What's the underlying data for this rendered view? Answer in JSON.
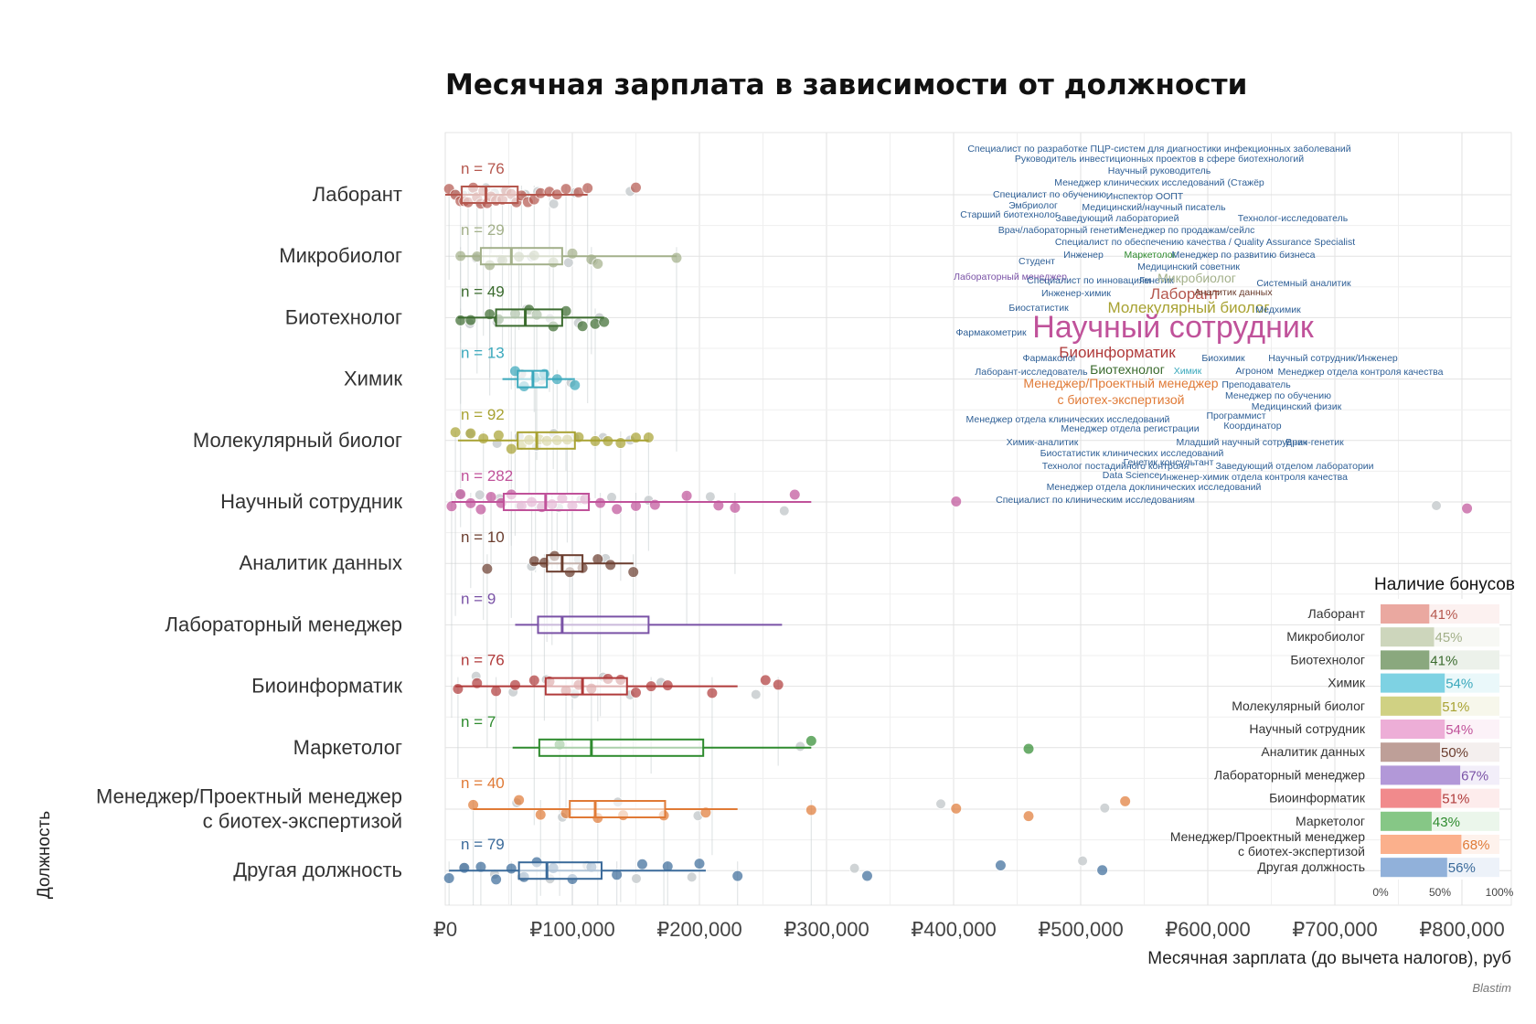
{
  "chart_data": {
    "type": "boxplot",
    "title": "Месячная зарплата в зависимости от должности",
    "xlabel": "Месячная зарплата (до вычета налогов), руб",
    "ylabel": "Должность",
    "credit": "Blastim",
    "xlim": [
      0,
      840000
    ],
    "xticks": [
      0,
      100000,
      200000,
      300000,
      400000,
      500000,
      600000,
      700000,
      800000
    ],
    "xtick_labels": [
      "₽0",
      "₽100,000",
      "₽200,000",
      "₽300,000",
      "₽400,000",
      "₽500,000",
      "₽600,000",
      "₽700,000",
      "₽800,000"
    ],
    "categories": [
      {
        "label": "Лаборант",
        "n_label": "n = 76",
        "color": "#b5574e",
        "whisker": [
          0,
          112000
        ],
        "q1": 13000,
        "median": 32000,
        "q3": 57000,
        "points": [
          3000,
          8000,
          12000,
          15000,
          18000,
          22000,
          25000,
          28000,
          30000,
          33000,
          36000,
          40000,
          45000,
          48000,
          52000,
          56000,
          60000,
          65000,
          70000,
          75000,
          82000,
          88000,
          95000,
          105000,
          112000,
          150000
        ]
      },
      {
        "label": "Микробиолог",
        "n_label": "n = 29",
        "color": "#a3b08a",
        "whisker": [
          10000,
          182000
        ],
        "q1": 28000,
        "median": 52000,
        "q3": 92000,
        "points": [
          12000,
          25000,
          35000,
          45000,
          58000,
          70000,
          85000,
          100000,
          115000,
          120000,
          182000
        ]
      },
      {
        "label": "Биотехнолог",
        "n_label": "n = 49",
        "color": "#3b6b2e",
        "whisker": [
          10000,
          125000
        ],
        "q1": 40000,
        "median": 63000,
        "q3": 92000,
        "points": [
          12000,
          20000,
          35000,
          42000,
          55000,
          66000,
          72000,
          85000,
          95000,
          108000,
          118000,
          125000
        ]
      },
      {
        "label": "Химик",
        "n_label": "n = 13",
        "color": "#3aa8bc",
        "whisker": [
          45000,
          102000
        ],
        "q1": 57000,
        "median": 69000,
        "q3": 80000,
        "points": [
          55000,
          62000,
          71000,
          78000,
          88000,
          102000
        ]
      },
      {
        "label": "Молекулярный биолог",
        "n_label": "n = 92",
        "color": "#a8a232",
        "whisker": [
          10000,
          160000
        ],
        "q1": 57000,
        "median": 72000,
        "q3": 102000,
        "points": [
          8000,
          20000,
          30000,
          42000,
          52000,
          60000,
          66000,
          74000,
          80000,
          88000,
          96000,
          105000,
          118000,
          128000,
          138000,
          150000,
          160000
        ]
      },
      {
        "label": "Научный сотрудник",
        "n_label": "n = 282",
        "color": "#c0529a",
        "whisker": [
          5000,
          288000
        ],
        "q1": 46000,
        "median": 79000,
        "q3": 113000,
        "points": [
          5000,
          12000,
          20000,
          28000,
          36000,
          44000,
          52000,
          60000,
          68000,
          76000,
          84000,
          92000,
          100000,
          110000,
          122000,
          135000,
          150000,
          165000,
          190000,
          215000,
          228000,
          275000,
          402000,
          804000
        ]
      },
      {
        "label": "Аналитик данных",
        "n_label": "n = 10",
        "color": "#6b3d2e",
        "whisker": [
          68000,
          148000
        ],
        "q1": 80000,
        "median": 92000,
        "q3": 108000,
        "points": [
          33000,
          70000,
          78000,
          86000,
          98000,
          108000,
          120000,
          130000,
          148000
        ]
      },
      {
        "label": "Лабораторный менеджер",
        "n_label": "n = 9",
        "color": "#7a52a6",
        "whisker": [
          55000,
          265000
        ],
        "q1": 73000,
        "median": 92000,
        "q3": 160000,
        "points": []
      },
      {
        "label": "Биоинформатик",
        "n_label": "n = 76",
        "color": "#b03a3a",
        "whisker": [
          8000,
          230000
        ],
        "q1": 79000,
        "median": 108000,
        "q3": 143000,
        "points": [
          10000,
          25000,
          40000,
          55000,
          70000,
          82000,
          95000,
          105000,
          115000,
          128000,
          138000,
          150000,
          162000,
          175000,
          210000,
          252000,
          262000
        ]
      },
      {
        "label": "Маркетолог",
        "n_label": "n = 7",
        "color": "#2e8b2e",
        "whisker": [
          53000,
          288000
        ],
        "q1": 74000,
        "median": 115000,
        "q3": 203000,
        "points": [
          90000,
          288000,
          459000
        ]
      },
      {
        "label": "Менеджер/Проектный менеджер\nс биотех-экспертизой",
        "n_label": "n = 40",
        "color": "#e07a36",
        "whisker": [
          22000,
          230000
        ],
        "q1": 98000,
        "median": 118000,
        "q3": 173000,
        "points": [
          22000,
          58000,
          75000,
          95000,
          120000,
          140000,
          172000,
          205000,
          288000,
          402000,
          459000,
          535000
        ]
      },
      {
        "label": "Другая должность",
        "n_label": "n = 79",
        "color": "#3a6a9a",
        "whisker": [
          3000,
          205000
        ],
        "q1": 58000,
        "median": 80000,
        "q3": 123000,
        "points": [
          3000,
          15000,
          28000,
          40000,
          52000,
          62000,
          72000,
          85000,
          100000,
          115000,
          135000,
          155000,
          175000,
          200000,
          230000,
          332000,
          437000,
          517000
        ]
      }
    ],
    "bonus_inset": {
      "title": "Наличие бонусов",
      "xticks": [
        "0%",
        "50%",
        "100%"
      ],
      "rows": [
        {
          "label": "Лаборант",
          "value": 41,
          "text": "41%",
          "color": "#e8a097"
        },
        {
          "label": "Микробиолог",
          "value": 45,
          "text": "45%",
          "color": "#c8d1b6"
        },
        {
          "label": "Биотехнолог",
          "value": 41,
          "text": "41%",
          "color": "#7fa072"
        },
        {
          "label": "Химик",
          "value": 54,
          "text": "54%",
          "color": "#72cde0"
        },
        {
          "label": "Молекулярный биолог",
          "value": 51,
          "text": "51%",
          "color": "#cbcc78"
        },
        {
          "label": "Научный сотрудник",
          "value": 54,
          "text": "54%",
          "color": "#eba6d3"
        },
        {
          "label": "Аналитик данных",
          "value": 50,
          "text": "50%",
          "color": "#b8968e"
        },
        {
          "label": "Лабораторный менеджер",
          "value": 67,
          "text": "67%",
          "color": "#ab8ed4"
        },
        {
          "label": "Биоинформатик",
          "value": 51,
          "text": "51%",
          "color": "#f07f82"
        },
        {
          "label": "Маркетолог",
          "value": 43,
          "text": "43%",
          "color": "#7bc27b"
        },
        {
          "label": "Менеджер/Проектный менеджер\nс биотех-экспертизой",
          "value": 68,
          "text": "68%",
          "color": "#fba882"
        },
        {
          "label": "Другая должность",
          "value": 56,
          "text": "56%",
          "color": "#86aad6"
        }
      ]
    },
    "word_cloud": [
      {
        "text": "Специалист по разработке ПЦР-систем для диагностики инфекционных заболеваний",
        "color": "#2e5f96",
        "weight": 1
      },
      {
        "text": "Руководитель инвестиционных проектов в сфере биотехнологий",
        "color": "#2e5f96",
        "weight": 1
      },
      {
        "text": "Научный руководитель",
        "color": "#2e5f96",
        "weight": 1
      },
      {
        "text": "Менеджер клинических исследований (Стажёр",
        "color": "#2e5f96",
        "weight": 1
      },
      {
        "text": "Специалист по обучению",
        "color": "#2e5f96",
        "weight": 1
      },
      {
        "text": "Инспектор ООПТ",
        "color": "#2e5f96",
        "weight": 1
      },
      {
        "text": "Эмбриолог",
        "color": "#2e5f96",
        "weight": 1
      },
      {
        "text": "Медицинский/научный писатель",
        "color": "#2e5f96",
        "weight": 1
      },
      {
        "text": "Старший биотехнолог",
        "color": "#2e5f96",
        "weight": 1
      },
      {
        "text": "Заведующий лабораторией",
        "color": "#2e5f96",
        "weight": 1
      },
      {
        "text": "Технолог-исследователь",
        "color": "#2e5f96",
        "weight": 1
      },
      {
        "text": "Врач/лабораторный генетик",
        "color": "#2e5f96",
        "weight": 1
      },
      {
        "text": "Менеджер по продажам/сейлс",
        "color": "#2e5f96",
        "weight": 1
      },
      {
        "text": "Специалист по обеспечению качества / Quality Assurance Specialist",
        "color": "#2e5f96",
        "weight": 1
      },
      {
        "text": "Инженер",
        "color": "#2e5f96",
        "weight": 1
      },
      {
        "text": "Маркетолог",
        "color": "#2e8b2e",
        "weight": 1
      },
      {
        "text": "Менеджер по развитию бизнеса",
        "color": "#2e5f96",
        "weight": 1
      },
      {
        "text": "Студент",
        "color": "#2e5f96",
        "weight": 1
      },
      {
        "text": "Медицинский советник",
        "color": "#2e5f96",
        "weight": 1
      },
      {
        "text": "Лабораторный менеджер",
        "color": "#7a52a6",
        "weight": 1
      },
      {
        "text": "Специалист по инновациям",
        "color": "#2e5f96",
        "weight": 1
      },
      {
        "text": "Генетик",
        "color": "#2e5f96",
        "weight": 1
      },
      {
        "text": "Микробиолог",
        "color": "#a3b08a",
        "weight": 2
      },
      {
        "text": "Системный аналитик",
        "color": "#2e5f96",
        "weight": 1
      },
      {
        "text": "Инженер-химик",
        "color": "#2e5f96",
        "weight": 1
      },
      {
        "text": "Лаборант",
        "color": "#b5574e",
        "weight": 3
      },
      {
        "text": "Аналитик данных",
        "color": "#6b3d2e",
        "weight": 1
      },
      {
        "text": "Биостатистик",
        "color": "#2e5f96",
        "weight": 1
      },
      {
        "text": "Молекулярный биолог",
        "color": "#a8a232",
        "weight": 3
      },
      {
        "text": "Медхимик",
        "color": "#2e5f96",
        "weight": 1
      },
      {
        "text": "Фармакометрик",
        "color": "#2e5f96",
        "weight": 1
      },
      {
        "text": "Научный сотрудник",
        "color": "#c0529a",
        "weight": 6
      },
      {
        "text": "Биоинформатик",
        "color": "#b03a3a",
        "weight": 3
      },
      {
        "text": "Фармаколог",
        "color": "#2e5f96",
        "weight": 1
      },
      {
        "text": "Биохимик",
        "color": "#2e5f96",
        "weight": 1
      },
      {
        "text": "Научный сотрудник/Инженер",
        "color": "#2e5f96",
        "weight": 1
      },
      {
        "text": "Лаборант-исследователь",
        "color": "#2e5f96",
        "weight": 1
      },
      {
        "text": "Биотехнолог",
        "color": "#3b6b2e",
        "weight": 2
      },
      {
        "text": "Химик",
        "color": "#3aa8bc",
        "weight": 1
      },
      {
        "text": "Агроном",
        "color": "#2e5f96",
        "weight": 1
      },
      {
        "text": "Менеджер отдела контроля качества",
        "color": "#2e5f96",
        "weight": 1
      },
      {
        "text": "Менеджер/Проектный менеджер",
        "color": "#e07a36",
        "weight": 2
      },
      {
        "text": "Преподаватель",
        "color": "#2e5f96",
        "weight": 1
      },
      {
        "text": "с биотех-экспертизой",
        "color": "#e07a36",
        "weight": 2
      },
      {
        "text": "Менеджер по обучению",
        "color": "#2e5f96",
        "weight": 1
      },
      {
        "text": "Медицинский физик",
        "color": "#2e5f96",
        "weight": 1
      },
      {
        "text": "Программист",
        "color": "#2e5f96",
        "weight": 1
      },
      {
        "text": "Менеджер отдела клинических исследований",
        "color": "#2e5f96",
        "weight": 1
      },
      {
        "text": "Координатор",
        "color": "#2e5f96",
        "weight": 1
      },
      {
        "text": "Менеджер отдела регистрации",
        "color": "#2e5f96",
        "weight": 1
      },
      {
        "text": "Младший научный сотрудник",
        "color": "#2e5f96",
        "weight": 1
      },
      {
        "text": "Врач-генетик",
        "color": "#2e5f96",
        "weight": 1
      },
      {
        "text": "Химик-аналитик",
        "color": "#2e5f96",
        "weight": 1
      },
      {
        "text": "Биостатистик клинических исследований",
        "color": "#2e5f96",
        "weight": 1
      },
      {
        "text": "Генетик консультант",
        "color": "#2e5f96",
        "weight": 1
      },
      {
        "text": "Технолог постадийного контроля",
        "color": "#2e5f96",
        "weight": 1
      },
      {
        "text": "Заведующий отделом лаборатории",
        "color": "#2e5f96",
        "weight": 1
      },
      {
        "text": "Data Science",
        "color": "#2e5f96",
        "weight": 1
      },
      {
        "text": "Инженер-химик отдела контроля качества",
        "color": "#2e5f96",
        "weight": 1
      },
      {
        "text": "Менеджер отдела доклинических исследований",
        "color": "#2e5f96",
        "weight": 1
      },
      {
        "text": "Специалист по клиническим исследованиям",
        "color": "#2e5f96",
        "weight": 1
      }
    ]
  }
}
